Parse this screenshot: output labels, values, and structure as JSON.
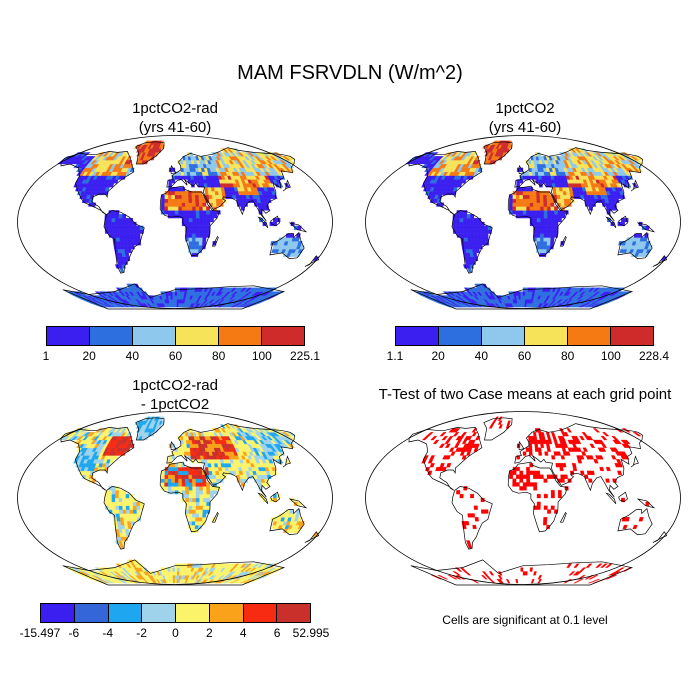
{
  "title": "MAM FSRVDLN (W/m^2)",
  "panels": [
    {
      "id": "p1",
      "title_lines": [
        "1pctCO2-rad",
        "(yrs 41-60)"
      ],
      "colorbar": {
        "colors": [
          "#3b1ef0",
          "#2e6fe0",
          "#8ec8ec",
          "#f7e35a",
          "#f57a14",
          "#cf2b2b"
        ],
        "ticks": [
          "1",
          "20",
          "40",
          "60",
          "80",
          "100",
          "225.1"
        ]
      }
    },
    {
      "id": "p2",
      "title_lines": [
        "1pctCO2",
        "(yrs 41-60)"
      ],
      "colorbar": {
        "colors": [
          "#3b1ef0",
          "#2e6fe0",
          "#8ec8ec",
          "#f7e35a",
          "#f57a14",
          "#cf2b2b"
        ],
        "ticks": [
          "1.1",
          "20",
          "40",
          "60",
          "80",
          "100",
          "228.4"
        ]
      }
    },
    {
      "id": "p3",
      "title_lines": [
        "1pctCO2-rad",
        "- 1pctCO2"
      ],
      "colorbar": {
        "colors": [
          "#3b1ef0",
          "#3466d9",
          "#1ea7f0",
          "#9fd3ec",
          "#fbf36a",
          "#f9a21a",
          "#f72a12",
          "#c9302c"
        ],
        "ticks": [
          "-15.497",
          "-6",
          "-4",
          "-2",
          "0",
          "2",
          "4",
          "6",
          "52.995"
        ]
      }
    },
    {
      "id": "p4",
      "title_lines": [
        "T-Test of two Case means at each grid point"
      ],
      "note": "Cells are significant at 0.1 level"
    }
  ],
  "chart_data": [
    {
      "type": "heatmap",
      "title": "1pctCO2-rad (yrs 41-60)",
      "levels": [
        1,
        20,
        40,
        60,
        80,
        100,
        225.1
      ],
      "colors": [
        "#3b1ef0",
        "#2e6fe0",
        "#8ec8ec",
        "#f7e35a",
        "#f57a14",
        "#cf2b2b"
      ]
    },
    {
      "type": "heatmap",
      "title": "1pctCO2 (yrs 41-60)",
      "levels": [
        1.1,
        20,
        40,
        60,
        80,
        100,
        228.4
      ],
      "colors": [
        "#3b1ef0",
        "#2e6fe0",
        "#8ec8ec",
        "#f7e35a",
        "#f57a14",
        "#cf2b2b"
      ]
    },
    {
      "type": "heatmap",
      "title": "1pctCO2-rad - 1pctCO2",
      "levels": [
        -15.497,
        -6,
        -4,
        -2,
        0,
        2,
        4,
        6,
        52.995
      ],
      "colors": [
        "#3b1ef0",
        "#3466d9",
        "#1ea7f0",
        "#9fd3ec",
        "#fbf36a",
        "#f9a21a",
        "#f72a12",
        "#c9302c"
      ]
    },
    {
      "type": "heatmap",
      "title": "T-Test of two Case means at each grid point",
      "note": "Cells are significant at 0.1 level",
      "colors": [
        "#ff0000"
      ]
    }
  ]
}
